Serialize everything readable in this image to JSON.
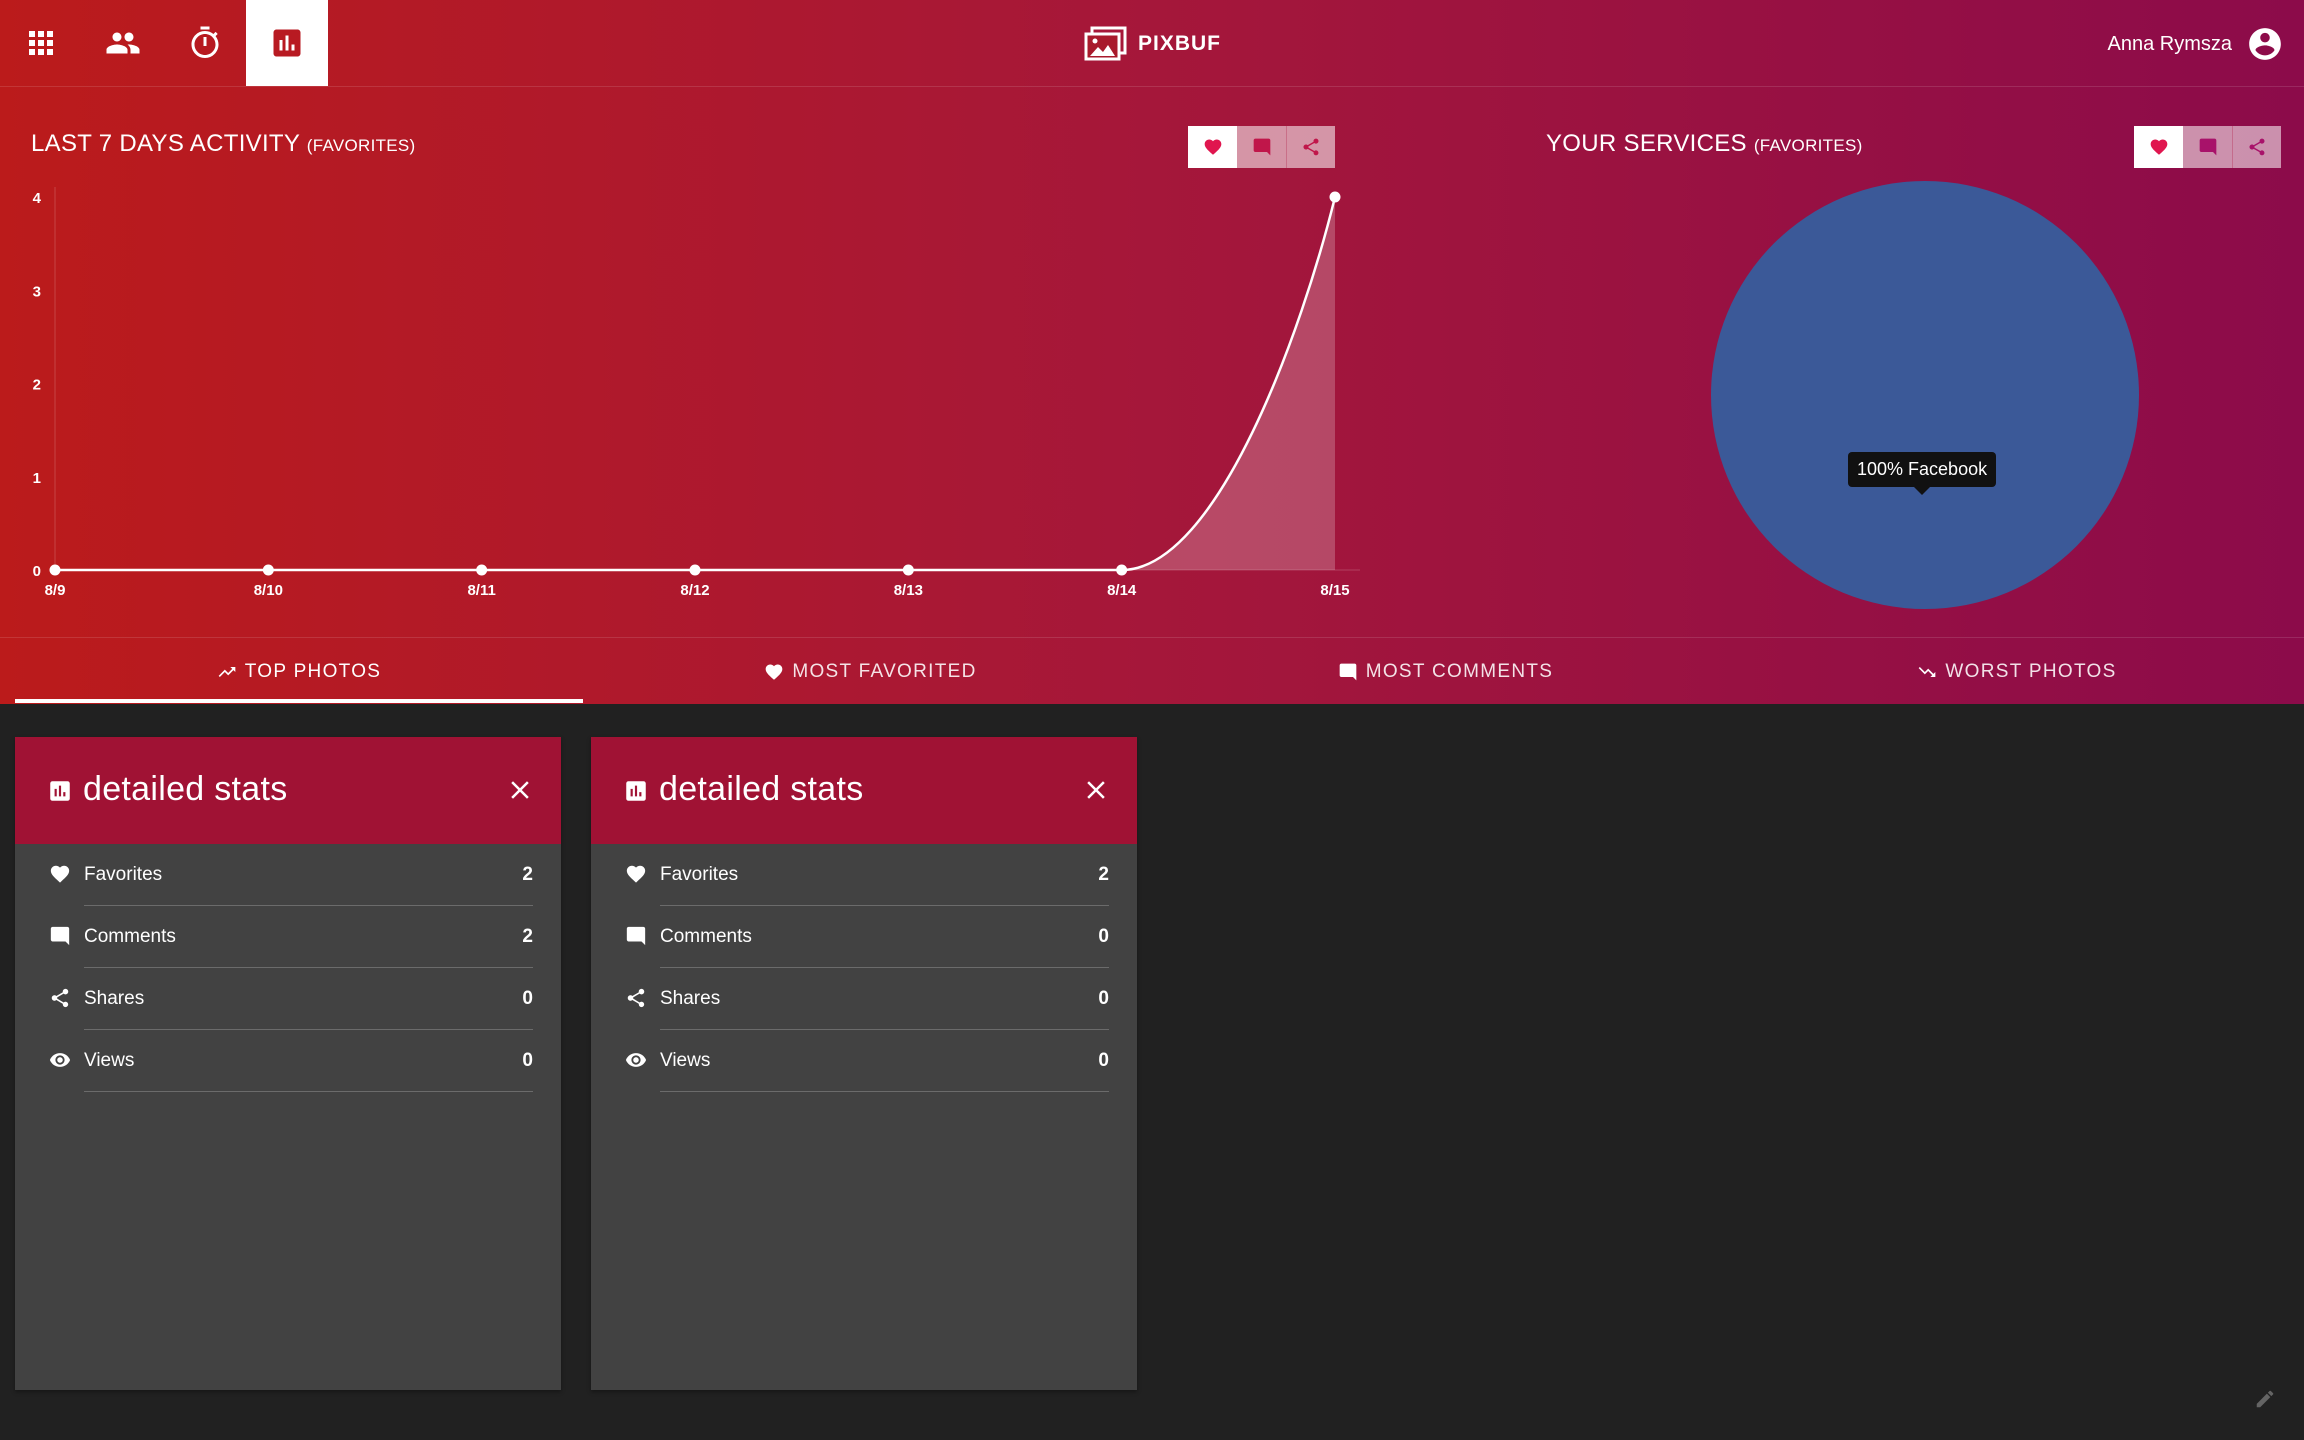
{
  "colors": {
    "accent": "#a01234",
    "hero_left": "#bb1b1b",
    "hero_right": "#8c0b4a",
    "card_bg": "#424242",
    "page_bg": "#212121",
    "pie_facebook": "#3b5998",
    "icon_active": "#e0164f"
  },
  "nav": {
    "items": [
      {
        "icon": "apps-grid-icon",
        "active": false
      },
      {
        "icon": "people-icon",
        "active": false
      },
      {
        "icon": "timer-icon",
        "active": false
      },
      {
        "icon": "bar-chart-icon",
        "active": true
      }
    ]
  },
  "brand": {
    "name": "PIXBUF",
    "icon": "photos-logo-icon"
  },
  "user": {
    "name": "Anna Rymsza",
    "icon": "account-circle-icon"
  },
  "activity_panel": {
    "title": "LAST 7 DAYS ACTIVITY",
    "subtitle": "(FAVORITES)",
    "filters": [
      {
        "icon": "heart-icon",
        "active": true
      },
      {
        "icon": "comment-icon",
        "active": false
      },
      {
        "icon": "share-icon",
        "active": false
      }
    ]
  },
  "services_panel": {
    "title": "YOUR SERVICES",
    "subtitle": "(FAVORITES)",
    "filters": [
      {
        "icon": "heart-icon",
        "active": true
      },
      {
        "icon": "comment-icon",
        "active": false
      },
      {
        "icon": "share-icon",
        "active": false
      }
    ],
    "tooltip": "100% Facebook"
  },
  "chart_data": [
    {
      "type": "area",
      "title": "LAST 7 DAYS ACTIVITY (FAVORITES)",
      "xlabel": "",
      "ylabel": "",
      "categories": [
        "8/9",
        "8/10",
        "8/11",
        "8/12",
        "8/13",
        "8/14",
        "8/15"
      ],
      "values": [
        0,
        0,
        0,
        0,
        0,
        0,
        4
      ],
      "yticks": [
        "0",
        "1",
        "2",
        "3",
        "4"
      ],
      "ylim": [
        0,
        4
      ],
      "grid": false
    },
    {
      "type": "pie",
      "title": "YOUR SERVICES (FAVORITES)",
      "labels": [
        "Facebook"
      ],
      "values": [
        100
      ],
      "colors": [
        "#3b5998"
      ]
    }
  ],
  "tabs": [
    {
      "label": "TOP PHOTOS",
      "icon": "trending-up-icon",
      "active": true
    },
    {
      "label": "MOST FAVORITED",
      "icon": "heart-icon",
      "active": false
    },
    {
      "label": "MOST COMMENTS",
      "icon": "comment-icon",
      "active": false
    },
    {
      "label": "WORST PHOTOS",
      "icon": "trending-down-icon",
      "active": false
    }
  ],
  "cards": [
    {
      "title": "detailed stats",
      "stats": [
        {
          "label": "Favorites",
          "value": "2",
          "icon": "heart-icon"
        },
        {
          "label": "Comments",
          "value": "2",
          "icon": "comment-icon"
        },
        {
          "label": "Shares",
          "value": "0",
          "icon": "share-icon"
        },
        {
          "label": "Views",
          "value": "0",
          "icon": "eye-icon"
        }
      ]
    },
    {
      "title": "detailed stats",
      "stats": [
        {
          "label": "Favorites",
          "value": "2",
          "icon": "heart-icon"
        },
        {
          "label": "Comments",
          "value": "0",
          "icon": "comment-icon"
        },
        {
          "label": "Shares",
          "value": "0",
          "icon": "share-icon"
        },
        {
          "label": "Views",
          "value": "0",
          "icon": "eye-icon"
        }
      ]
    }
  ]
}
